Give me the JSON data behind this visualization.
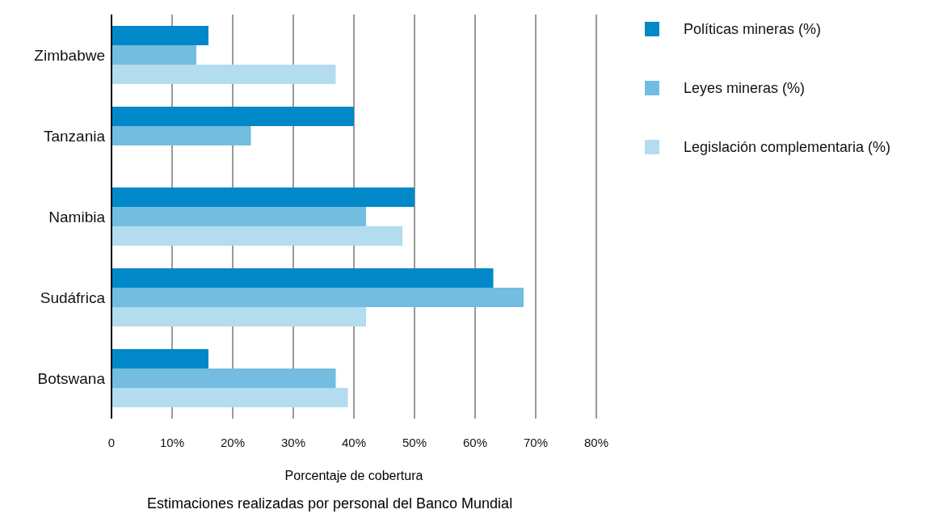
{
  "chart_data": {
    "type": "bar",
    "orientation": "horizontal",
    "xlabel": "Porcentaje de cobertura",
    "annotations": [
      "Estimaciones realizadas por personal del Banco Mundial"
    ],
    "categories": [
      "Zimbabwe",
      "Tanzania",
      "Namibia",
      "Sudáfrica",
      "Botswana"
    ],
    "series": [
      {
        "name": "Políticas mineras (%)",
        "color": "#0088c8",
        "values": [
          16,
          40,
          50,
          63,
          16
        ]
      },
      {
        "name": "Leyes mineras (%)",
        "color": "#72bde0",
        "values": [
          14,
          23,
          42,
          68,
          37
        ]
      },
      {
        "name": "Legislación complementaria (%)",
        "color": "#b3dcee",
        "values": [
          37,
          null,
          48,
          42,
          39
        ]
      }
    ],
    "xlim": [
      0,
      80
    ],
    "xticks": [
      0,
      {
        "value": 10,
        "label": "10%"
      },
      {
        "value": 20,
        "label": "20%"
      },
      {
        "value": 30,
        "label": "30%"
      },
      {
        "value": 40,
        "label": "40%"
      },
      {
        "value": 50,
        "label": "50%"
      },
      {
        "value": 60,
        "label": "60%"
      },
      {
        "value": 70,
        "label": "70%"
      },
      {
        "value": 80,
        "label": "80%"
      }
    ],
    "grid": "x",
    "legend": "top right"
  }
}
